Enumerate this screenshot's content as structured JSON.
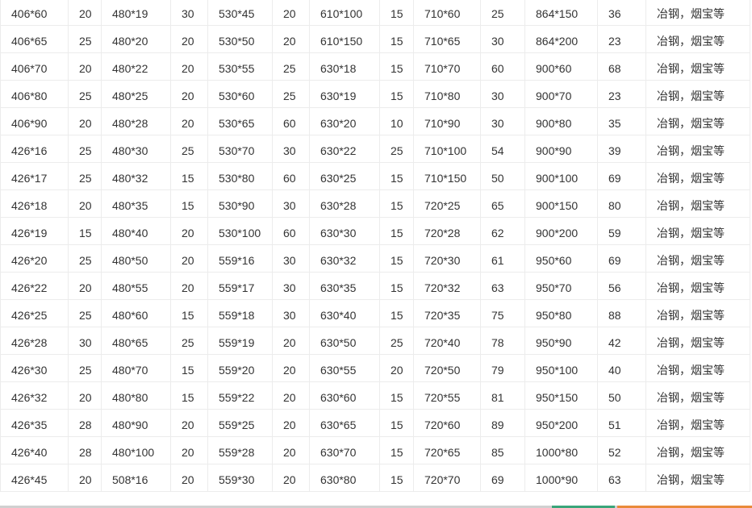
{
  "table": {
    "rows": [
      [
        "406*60",
        "20",
        "480*19",
        "30",
        "530*45",
        "20",
        "610*100",
        "15",
        "710*60",
        "25",
        "864*150",
        "36",
        "冶钢，烟宝等"
      ],
      [
        "406*65",
        "25",
        "480*20",
        "20",
        "530*50",
        "20",
        "610*150",
        "15",
        "710*65",
        "30",
        "864*200",
        "23",
        "冶钢，烟宝等"
      ],
      [
        "406*70",
        "20",
        "480*22",
        "20",
        "530*55",
        "25",
        "630*18",
        "15",
        "710*70",
        "60",
        "900*60",
        "68",
        "冶钢，烟宝等"
      ],
      [
        "406*80",
        "25",
        "480*25",
        "20",
        "530*60",
        "25",
        "630*19",
        "15",
        "710*80",
        "30",
        "900*70",
        "23",
        "冶钢，烟宝等"
      ],
      [
        "406*90",
        "20",
        "480*28",
        "20",
        "530*65",
        "60",
        "630*20",
        "10",
        "710*90",
        "30",
        "900*80",
        "35",
        "冶钢，烟宝等"
      ],
      [
        "426*16",
        "25",
        "480*30",
        "25",
        "530*70",
        "30",
        "630*22",
        "25",
        "710*100",
        "54",
        "900*90",
        "39",
        "冶钢，烟宝等"
      ],
      [
        "426*17",
        "25",
        "480*32",
        "15",
        "530*80",
        "60",
        "630*25",
        "15",
        "710*150",
        "50",
        "900*100",
        "69",
        "冶钢，烟宝等"
      ],
      [
        "426*18",
        "20",
        "480*35",
        "15",
        "530*90",
        "30",
        "630*28",
        "15",
        "720*25",
        "65",
        "900*150",
        "80",
        "冶钢，烟宝等"
      ],
      [
        "426*19",
        "15",
        "480*40",
        "20",
        "530*100",
        "60",
        "630*30",
        "15",
        "720*28",
        "62",
        "900*200",
        "59",
        "冶钢，烟宝等"
      ],
      [
        "426*20",
        "25",
        "480*50",
        "20",
        "559*16",
        "30",
        "630*32",
        "15",
        "720*30",
        "61",
        "950*60",
        "69",
        "冶钢，烟宝等"
      ],
      [
        "426*22",
        "20",
        "480*55",
        "20",
        "559*17",
        "30",
        "630*35",
        "15",
        "720*32",
        "63",
        "950*70",
        "56",
        "冶钢，烟宝等"
      ],
      [
        "426*25",
        "25",
        "480*60",
        "15",
        "559*18",
        "30",
        "630*40",
        "15",
        "720*35",
        "75",
        "950*80",
        "88",
        "冶钢，烟宝等"
      ],
      [
        "426*28",
        "30",
        "480*65",
        "25",
        "559*19",
        "20",
        "630*50",
        "25",
        "720*40",
        "78",
        "950*90",
        "42",
        "冶钢，烟宝等"
      ],
      [
        "426*30",
        "25",
        "480*70",
        "15",
        "559*20",
        "20",
        "630*55",
        "20",
        "720*50",
        "79",
        "950*100",
        "40",
        "冶钢，烟宝等"
      ],
      [
        "426*32",
        "20",
        "480*80",
        "15",
        "559*22",
        "20",
        "630*60",
        "15",
        "720*55",
        "81",
        "950*150",
        "50",
        "冶钢，烟宝等"
      ],
      [
        "426*35",
        "28",
        "480*90",
        "20",
        "559*25",
        "20",
        "630*65",
        "15",
        "720*60",
        "89",
        "950*200",
        "51",
        "冶钢，烟宝等"
      ],
      [
        "426*40",
        "28",
        "480*100",
        "20",
        "559*28",
        "20",
        "630*70",
        "15",
        "720*65",
        "85",
        "1000*80",
        "52",
        "冶钢，烟宝等"
      ],
      [
        "426*45",
        "20",
        "508*16",
        "20",
        "559*30",
        "20",
        "630*80",
        "15",
        "720*70",
        "69",
        "1000*90",
        "63",
        "冶钢，烟宝等"
      ]
    ]
  },
  "colors": {
    "border": "#ececec",
    "text": "#333333",
    "strip_green": "#3aa57a",
    "strip_orange": "#e98a3a"
  }
}
